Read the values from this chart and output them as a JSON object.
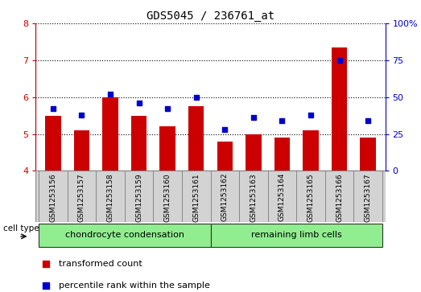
{
  "title": "GDS5045 / 236761_at",
  "samples": [
    "GSM1253156",
    "GSM1253157",
    "GSM1253158",
    "GSM1253159",
    "GSM1253160",
    "GSM1253161",
    "GSM1253162",
    "GSM1253163",
    "GSM1253164",
    "GSM1253165",
    "GSM1253166",
    "GSM1253167"
  ],
  "transformed_count": [
    5.5,
    5.1,
    6.0,
    5.5,
    5.2,
    5.75,
    4.8,
    5.0,
    4.9,
    5.1,
    7.35,
    4.9
  ],
  "percentile_rank": [
    42,
    38,
    52,
    46,
    42,
    50,
    28,
    36,
    34,
    38,
    75,
    34
  ],
  "bar_color": "#cc0000",
  "dot_color": "#0000cc",
  "ylim_left": [
    4,
    8
  ],
  "ylim_right": [
    0,
    100
  ],
  "yticks_left": [
    4,
    5,
    6,
    7,
    8
  ],
  "yticks_right": [
    0,
    25,
    50,
    75,
    100
  ],
  "ytick_labels_right": [
    "0",
    "25",
    "50",
    "75",
    "100%"
  ],
  "cell_type_label": "cell type",
  "legend_bar_label": "transformed count",
  "legend_dot_label": "percentile rank within the sample",
  "label_bg_color": "#d3d3d3",
  "group1_color": "#90ee90",
  "group2_color": "#90ee90",
  "group1_label": "chondrocyte condensation",
  "group2_label": "remaining limb cells",
  "bar_width": 0.55,
  "baseline": 4
}
